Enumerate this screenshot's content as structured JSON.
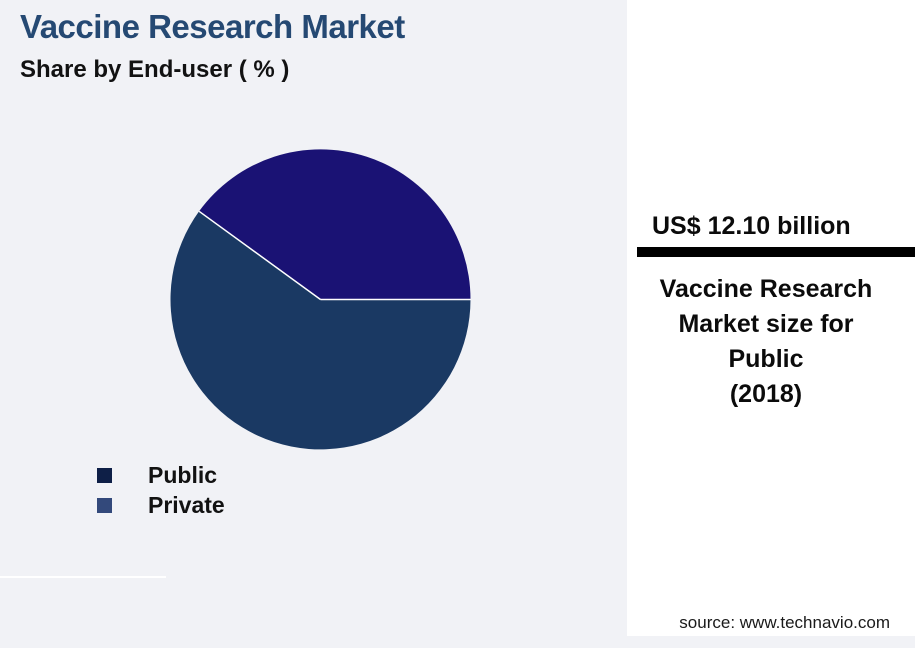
{
  "page": {
    "background": "#F1F2F6"
  },
  "header": {
    "title": "Vaccine Research Market",
    "title_color": "#254973",
    "subtitle": "Share by End-user ( % )"
  },
  "chart_data": {
    "type": "pie",
    "title": "Vaccine Research Market",
    "subtitle": "Share by End-user ( % )",
    "categories": [
      "Public",
      "Private"
    ],
    "values": [
      60,
      40
    ],
    "unit": "%",
    "start_angle_deg": 0,
    "direction": "clockwise",
    "slice_colors": [
      "#1A3963",
      "#1A1274"
    ],
    "separator_color": "#FFFFFF",
    "legend": {
      "position": "bottom-left",
      "entries": [
        {
          "label": "Public",
          "swatch_color": "#0E1F47"
        },
        {
          "label": "Private",
          "swatch_color": "#33497B"
        }
      ]
    }
  },
  "highlight_panel": {
    "background": "#FFFFFF",
    "value": "US$ 12.10 billion",
    "divider_color": "#000000",
    "caption_lines": [
      "Vaccine Research",
      "Market size for",
      "Public",
      "(2018)"
    ]
  },
  "footer": {
    "source": "source: www.technavio.com"
  }
}
